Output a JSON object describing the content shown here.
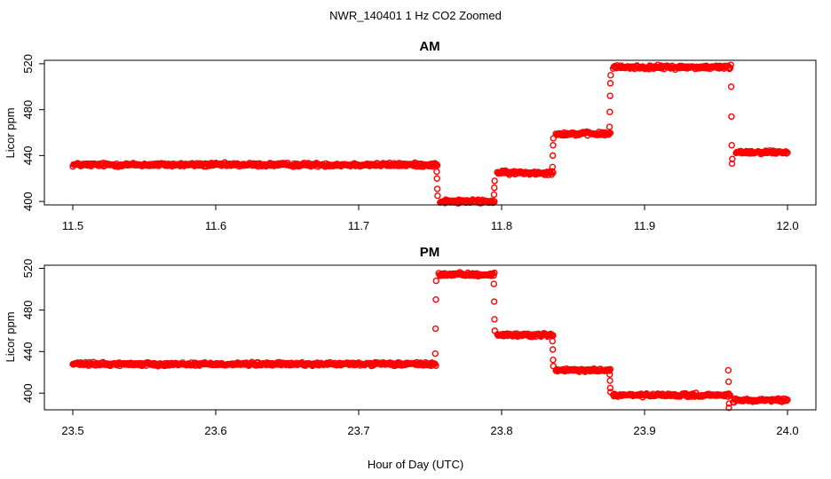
{
  "figure": {
    "title": "NWR_140401  1 Hz CO2 Zoomed",
    "xlabel": "Hour of Day (UTC)",
    "marker_color": "#ff0000"
  },
  "chart_data": [
    {
      "type": "scatter",
      "title": "AM",
      "xlabel": "Hour of Day (UTC)",
      "ylabel": "Licor ppm",
      "xlim": [
        11.5,
        12.0
      ],
      "ylim": [
        397,
        523
      ],
      "xticks": [
        "11.5",
        "11.6",
        "11.7",
        "11.8",
        "11.9",
        "12.0"
      ],
      "yticks": [
        "400",
        "440",
        "480",
        "520"
      ],
      "grid": false,
      "marker": "open-circle",
      "color": "#ff0000",
      "segments": [
        {
          "x_start": 11.5,
          "x_end": 11.755,
          "y": 432
        },
        {
          "x_start": 11.757,
          "x_end": 11.795,
          "y": 400
        },
        {
          "x_start": 11.797,
          "x_end": 11.836,
          "y": 425
        },
        {
          "x_start": 11.838,
          "x_end": 11.876,
          "y": 459
        },
        {
          "x_start": 11.878,
          "x_end": 11.96,
          "y": 517
        },
        {
          "x_start": 11.964,
          "x_end": 12.0,
          "y": 443
        }
      ],
      "transitions": [
        {
          "x": 11.755,
          "y": [
            426,
            420,
            411,
            405
          ]
        },
        {
          "x": 11.795,
          "y": [
            406,
            412,
            418
          ]
        },
        {
          "x": 11.836,
          "y": [
            430,
            440,
            449,
            455
          ]
        },
        {
          "x": 11.876,
          "y": [
            465,
            478,
            492,
            503,
            510
          ]
        },
        {
          "x": 11.961,
          "y": [
            519,
            500,
            474,
            449,
            433,
            437
          ]
        }
      ]
    },
    {
      "type": "scatter",
      "title": "PM",
      "xlabel": "Hour of Day (UTC)",
      "ylabel": "Licor ppm",
      "xlim": [
        23.5,
        24.0
      ],
      "ylim": [
        384,
        523
      ],
      "xticks": [
        "23.5",
        "23.6",
        "23.7",
        "23.8",
        "23.9",
        "24.0"
      ],
      "yticks": [
        "400",
        "440",
        "480",
        "520"
      ],
      "grid": false,
      "marker": "open-circle",
      "color": "#ff0000",
      "segments": [
        {
          "x_start": 23.5,
          "x_end": 23.754,
          "y": 428
        },
        {
          "x_start": 23.756,
          "x_end": 23.795,
          "y": 514
        },
        {
          "x_start": 23.797,
          "x_end": 23.836,
          "y": 456
        },
        {
          "x_start": 23.838,
          "x_end": 23.876,
          "y": 422
        },
        {
          "x_start": 23.878,
          "x_end": 23.96,
          "y": 398
        },
        {
          "x_start": 23.962,
          "x_end": 24.0,
          "y": 393
        }
      ],
      "transitions": [
        {
          "x": 23.754,
          "y": [
            438,
            462,
            490,
            508
          ]
        },
        {
          "x": 23.795,
          "y": [
            505,
            488,
            471,
            460
          ]
        },
        {
          "x": 23.836,
          "y": [
            450,
            442,
            432,
            426
          ]
        },
        {
          "x": 23.876,
          "y": [
            418,
            412,
            405,
            401
          ]
        },
        {
          "x": 23.959,
          "y": [
            422,
            411,
            386,
            390
          ]
        }
      ]
    }
  ]
}
